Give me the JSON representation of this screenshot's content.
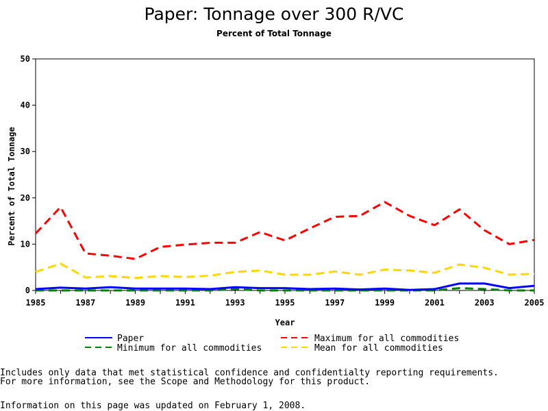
{
  "chart_data": {
    "type": "line",
    "title": "Paper: Tonnage over 300 R/VC",
    "subtitle": "Percent of Total Tonnage",
    "xlabel": "Year",
    "ylabel": "Percent of Total Tonnage",
    "x": [
      1985,
      1986,
      1987,
      1988,
      1989,
      1990,
      1991,
      1992,
      1993,
      1994,
      1995,
      1996,
      1997,
      1998,
      1999,
      2000,
      2001,
      2002,
      2003,
      2004,
      2005
    ],
    "xticks": [
      "1985",
      "1987",
      "1989",
      "1991",
      "1993",
      "1995",
      "1997",
      "1999",
      "2001",
      "2003",
      "2005"
    ],
    "yticks": [
      "0",
      "10",
      "20",
      "30",
      "40",
      "50"
    ],
    "xlim": [
      1985,
      2005
    ],
    "ylim": [
      0,
      50
    ],
    "grid": false,
    "legend_position": "bottom",
    "series": [
      {
        "name": "Paper",
        "color": "#0000ff",
        "style": "solid",
        "values": [
          0.3,
          0.6,
          0.4,
          0.7,
          0.4,
          0.4,
          0.4,
          0.3,
          0.7,
          0.5,
          0.5,
          0.3,
          0.4,
          0.2,
          0.4,
          0.1,
          0.3,
          1.5,
          1.5,
          0.5,
          1.0
        ]
      },
      {
        "name": "Maximum for all commodities",
        "color": "#ff0000",
        "style": "dashed",
        "values": [
          12.3,
          18.0,
          8.0,
          7.5,
          6.8,
          9.4,
          9.9,
          10.3,
          10.3,
          12.6,
          10.8,
          13.4,
          15.9,
          16.1,
          19.1,
          16.1,
          14.1,
          17.5,
          13.0,
          10.0,
          10.9
        ]
      },
      {
        "name": "Minimum for all commodities",
        "color": "#008000",
        "style": "dashed",
        "values": [
          0.0,
          0.0,
          0.0,
          0.0,
          0.0,
          0.0,
          0.0,
          0.0,
          0.3,
          0.0,
          0.0,
          0.0,
          0.0,
          0.0,
          0.0,
          0.0,
          0.0,
          0.5,
          0.3,
          0.0,
          0.0
        ]
      },
      {
        "name": "Mean for all commodities",
        "color": "#ffd700",
        "style": "dashed",
        "values": [
          4.0,
          5.8,
          2.8,
          3.1,
          2.7,
          3.1,
          2.9,
          3.2,
          4.0,
          4.3,
          3.4,
          3.4,
          4.1,
          3.4,
          4.5,
          4.3,
          3.8,
          5.6,
          4.9,
          3.4,
          3.6
        ]
      }
    ]
  },
  "notes": {
    "line1": "Includes only data that met statistical confidence and confidentialty reporting requirements.",
    "line2": "For more information, see the Scope and Methodology for this product.",
    "line3": "Information on this page was updated on February 1, 2008."
  }
}
